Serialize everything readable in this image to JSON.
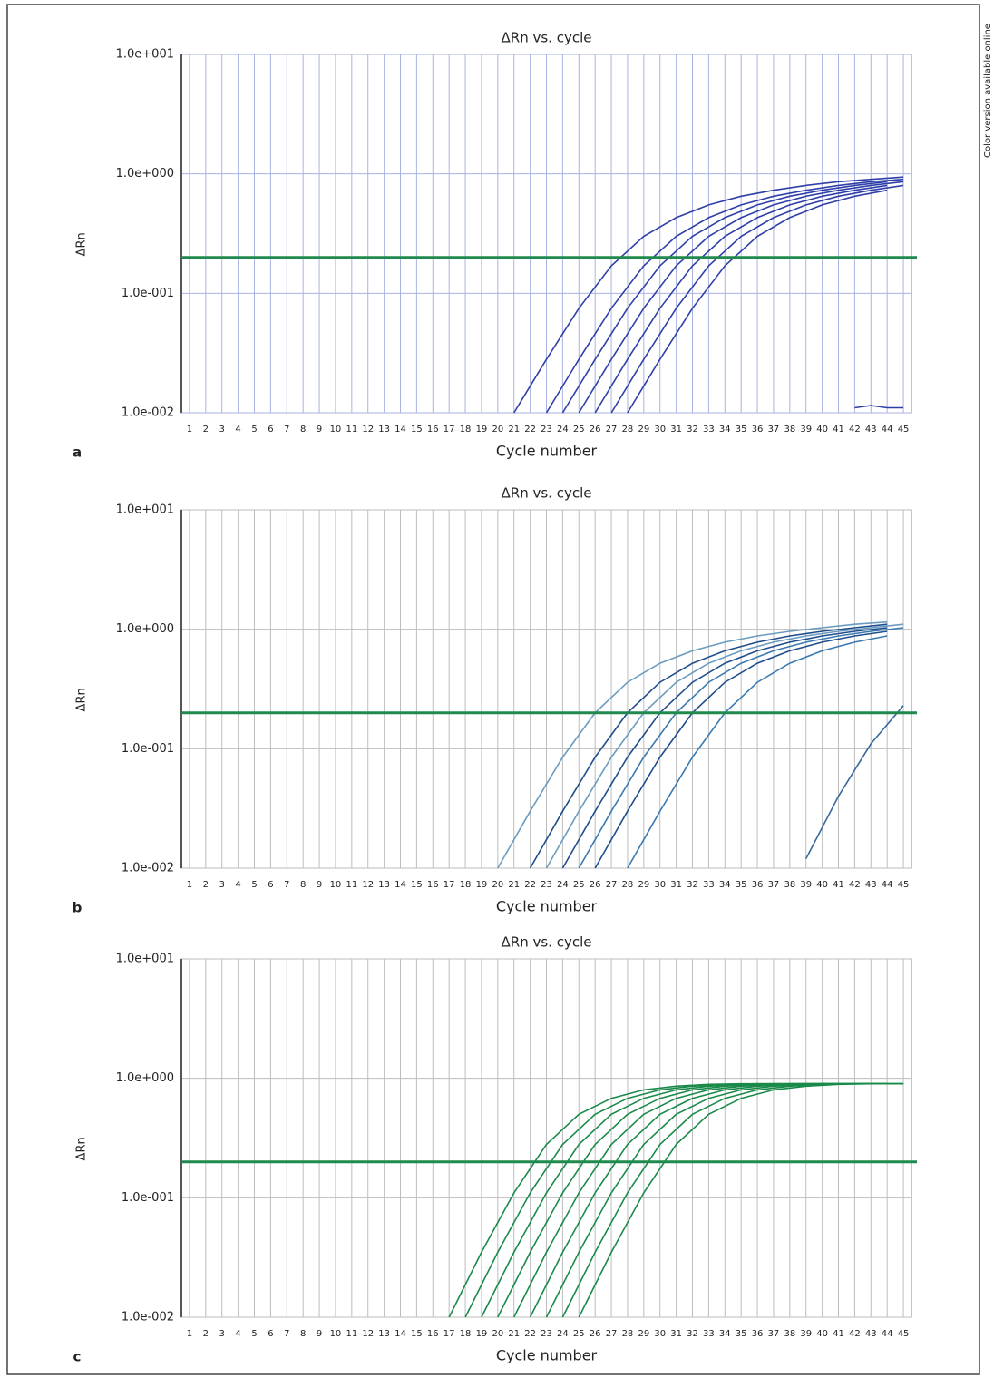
{
  "side_note": "Color version available online",
  "chart_data": [
    {
      "type": "line",
      "panel_label": "a",
      "title": "ΔRn vs. cycle",
      "xlabel": "Cycle number",
      "ylabel": "ΔRn",
      "xlim": [
        0.5,
        45.5
      ],
      "xticks": [
        1,
        2,
        3,
        4,
        5,
        6,
        7,
        8,
        9,
        10,
        11,
        12,
        13,
        14,
        15,
        16,
        17,
        18,
        19,
        20,
        21,
        22,
        23,
        24,
        25,
        26,
        27,
        28,
        29,
        30,
        31,
        32,
        33,
        34,
        35,
        36,
        37,
        38,
        39,
        40,
        41,
        42,
        43,
        44,
        45
      ],
      "ylim": [
        0.01,
        10
      ],
      "log_scale": true,
      "grid": true,
      "grid_color": "#a9b3e2",
      "yticks": [
        {
          "value": 0.01,
          "label": "1.0e-002"
        },
        {
          "value": 0.1,
          "label": "1.0e-001"
        },
        {
          "value": 1,
          "label": "1.0e+000"
        },
        {
          "value": 10,
          "label": "1.0e+001"
        }
      ],
      "threshold": 0.2,
      "threshold_color": "#1f8a4c",
      "series": [
        {
          "color": "#2f3fa8",
          "x": [
            21,
            23,
            25,
            27,
            29,
            31,
            33,
            35,
            37,
            39,
            41,
            43,
            45
          ],
          "values": [
            0.01,
            0.028,
            0.075,
            0.17,
            0.3,
            0.43,
            0.55,
            0.65,
            0.73,
            0.8,
            0.86,
            0.9,
            0.94
          ]
        },
        {
          "color": "#2f3fa8",
          "x": [
            23,
            25,
            27,
            29,
            31,
            33,
            35,
            37,
            39,
            41,
            43,
            45
          ],
          "values": [
            0.01,
            0.028,
            0.075,
            0.17,
            0.3,
            0.43,
            0.55,
            0.65,
            0.73,
            0.8,
            0.86,
            0.9
          ]
        },
        {
          "color": "#2f3fa8",
          "x": [
            24,
            26,
            28,
            30,
            32,
            34,
            36,
            38,
            40,
            42,
            44
          ],
          "values": [
            0.01,
            0.028,
            0.075,
            0.17,
            0.3,
            0.43,
            0.55,
            0.65,
            0.73,
            0.8,
            0.86
          ]
        },
        {
          "color": "#2f3fa8",
          "x": [
            25,
            27,
            29,
            31,
            33,
            35,
            37,
            39,
            41,
            43,
            45
          ],
          "values": [
            0.01,
            0.028,
            0.075,
            0.17,
            0.3,
            0.43,
            0.55,
            0.65,
            0.73,
            0.8,
            0.86
          ]
        },
        {
          "color": "#2f3fa8",
          "x": [
            26,
            28,
            30,
            32,
            34,
            36,
            38,
            40,
            42,
            44
          ],
          "values": [
            0.01,
            0.028,
            0.075,
            0.17,
            0.3,
            0.43,
            0.55,
            0.65,
            0.73,
            0.8
          ]
        },
        {
          "color": "#2f3fa8",
          "x": [
            27,
            29,
            31,
            33,
            35,
            37,
            39,
            41,
            43,
            45
          ],
          "values": [
            0.01,
            0.028,
            0.075,
            0.17,
            0.3,
            0.43,
            0.55,
            0.65,
            0.73,
            0.8
          ]
        },
        {
          "color": "#2f3fa8",
          "x": [
            28,
            30,
            32,
            34,
            36,
            38,
            40,
            42,
            44
          ],
          "values": [
            0.01,
            0.028,
            0.075,
            0.17,
            0.3,
            0.43,
            0.55,
            0.65,
            0.73
          ]
        },
        {
          "color": "#2f3fa8",
          "x": [
            42,
            43,
            44,
            45
          ],
          "values": [
            0.011,
            0.0115,
            0.011,
            0.011
          ]
        }
      ]
    },
    {
      "type": "line",
      "panel_label": "b",
      "title": "ΔRn vs. cycle",
      "xlabel": "Cycle number",
      "ylabel": "ΔRn",
      "xlim": [
        0.5,
        45.5
      ],
      "xticks": [
        1,
        2,
        3,
        4,
        5,
        6,
        7,
        8,
        9,
        10,
        11,
        12,
        13,
        14,
        15,
        16,
        17,
        18,
        19,
        20,
        21,
        22,
        23,
        24,
        25,
        26,
        27,
        28,
        29,
        30,
        31,
        32,
        33,
        34,
        35,
        36,
        37,
        38,
        39,
        40,
        41,
        42,
        43,
        44,
        45
      ],
      "ylim": [
        0.01,
        10
      ],
      "log_scale": true,
      "grid": true,
      "grid_color": "#bdbdbd",
      "yticks": [
        {
          "value": 0.01,
          "label": "1.0e-002"
        },
        {
          "value": 0.1,
          "label": "1.0e-001"
        },
        {
          "value": 1,
          "label": "1.0e+000"
        },
        {
          "value": 10,
          "label": "1.0e+001"
        }
      ],
      "threshold": 0.2,
      "threshold_color": "#1f8a4c",
      "series": [
        {
          "color": "#6a9cc0",
          "x": [
            20,
            22,
            24,
            26,
            28,
            30,
            32,
            34,
            36,
            38,
            40,
            42,
            44
          ],
          "values": [
            0.01,
            0.03,
            0.085,
            0.2,
            0.36,
            0.52,
            0.66,
            0.78,
            0.88,
            0.96,
            1.03,
            1.1,
            1.15
          ]
        },
        {
          "color": "#1f4e8c",
          "x": [
            22,
            24,
            26,
            28,
            30,
            32,
            34,
            36,
            38,
            40,
            42,
            44
          ],
          "values": [
            0.01,
            0.03,
            0.085,
            0.2,
            0.36,
            0.52,
            0.66,
            0.78,
            0.88,
            0.96,
            1.03,
            1.1
          ]
        },
        {
          "color": "#6a9cc0",
          "x": [
            23,
            25,
            27,
            29,
            31,
            33,
            35,
            37,
            39,
            41,
            43,
            45
          ],
          "values": [
            0.01,
            0.03,
            0.085,
            0.2,
            0.36,
            0.52,
            0.66,
            0.78,
            0.88,
            0.96,
            1.03,
            1.1
          ]
        },
        {
          "color": "#1f4e8c",
          "x": [
            24,
            26,
            28,
            30,
            32,
            34,
            36,
            38,
            40,
            42,
            44
          ],
          "values": [
            0.01,
            0.03,
            0.085,
            0.2,
            0.36,
            0.52,
            0.66,
            0.78,
            0.88,
            0.96,
            1.03
          ]
        },
        {
          "color": "#3a7ab0",
          "x": [
            25,
            27,
            29,
            31,
            33,
            35,
            37,
            39,
            41,
            43,
            45
          ],
          "values": [
            0.01,
            0.03,
            0.085,
            0.2,
            0.36,
            0.52,
            0.66,
            0.78,
            0.88,
            0.96,
            1.03
          ]
        },
        {
          "color": "#1f4e8c",
          "x": [
            26,
            28,
            30,
            32,
            34,
            36,
            38,
            40,
            42,
            44
          ],
          "values": [
            0.01,
            0.03,
            0.085,
            0.2,
            0.36,
            0.52,
            0.66,
            0.78,
            0.88,
            0.96
          ]
        },
        {
          "color": "#3a7ab0",
          "x": [
            28,
            30,
            32,
            34,
            36,
            38,
            40,
            42,
            44
          ],
          "values": [
            0.01,
            0.03,
            0.085,
            0.2,
            0.36,
            0.52,
            0.66,
            0.78,
            0.88
          ]
        },
        {
          "color": "#3a6a9e",
          "x": [
            39,
            41,
            43,
            45
          ],
          "values": [
            0.012,
            0.04,
            0.11,
            0.23
          ]
        }
      ]
    },
    {
      "type": "line",
      "panel_label": "c",
      "title": "ΔRn vs. cycle",
      "xlabel": "Cycle number",
      "ylabel": "ΔRn",
      "xlim": [
        0.5,
        45.5
      ],
      "xticks": [
        1,
        2,
        3,
        4,
        5,
        6,
        7,
        8,
        9,
        10,
        11,
        12,
        13,
        14,
        15,
        16,
        17,
        18,
        19,
        20,
        21,
        22,
        23,
        24,
        25,
        26,
        27,
        28,
        29,
        30,
        31,
        32,
        33,
        34,
        35,
        36,
        37,
        38,
        39,
        40,
        41,
        42,
        43,
        44,
        45
      ],
      "ylim": [
        0.01,
        10
      ],
      "log_scale": true,
      "grid": true,
      "grid_color": "#bdbdbd",
      "yticks": [
        {
          "value": 0.01,
          "label": "1.0e-002"
        },
        {
          "value": 0.1,
          "label": "1.0e-001"
        },
        {
          "value": 1,
          "label": "1.0e+000"
        },
        {
          "value": 10,
          "label": "1.0e+001"
        }
      ],
      "threshold": 0.2,
      "threshold_color": "#1f8a4c",
      "series": [
        {
          "color": "#1a8a4a",
          "x": [
            17,
            19,
            21,
            23,
            25,
            27,
            29,
            31,
            33,
            35,
            37,
            39,
            41,
            43,
            45
          ],
          "values": [
            0.01,
            0.035,
            0.11,
            0.28,
            0.5,
            0.68,
            0.8,
            0.86,
            0.89,
            0.9,
            0.9,
            0.9,
            0.9,
            0.9,
            0.9
          ]
        },
        {
          "color": "#1a8a4a",
          "x": [
            18,
            20,
            22,
            24,
            26,
            28,
            30,
            32,
            34,
            36,
            38,
            40,
            42,
            44
          ],
          "values": [
            0.01,
            0.035,
            0.11,
            0.28,
            0.5,
            0.68,
            0.8,
            0.86,
            0.89,
            0.9,
            0.9,
            0.9,
            0.9,
            0.9
          ]
        },
        {
          "color": "#1a8a4a",
          "x": [
            19,
            21,
            23,
            25,
            27,
            29,
            31,
            33,
            35,
            37,
            39,
            41,
            43,
            45
          ],
          "values": [
            0.01,
            0.035,
            0.11,
            0.28,
            0.5,
            0.68,
            0.8,
            0.86,
            0.89,
            0.9,
            0.9,
            0.9,
            0.9,
            0.9
          ]
        },
        {
          "color": "#1a8a4a",
          "x": [
            20,
            22,
            24,
            26,
            28,
            30,
            32,
            34,
            36,
            38,
            40,
            42,
            44
          ],
          "values": [
            0.01,
            0.035,
            0.11,
            0.28,
            0.5,
            0.68,
            0.8,
            0.86,
            0.89,
            0.9,
            0.9,
            0.9,
            0.9
          ]
        },
        {
          "color": "#1a8a4a",
          "x": [
            21,
            23,
            25,
            27,
            29,
            31,
            33,
            35,
            37,
            39,
            41,
            43,
            45
          ],
          "values": [
            0.01,
            0.035,
            0.11,
            0.28,
            0.5,
            0.68,
            0.8,
            0.86,
            0.89,
            0.9,
            0.9,
            0.9,
            0.9
          ]
        },
        {
          "color": "#1a8a4a",
          "x": [
            22,
            24,
            26,
            28,
            30,
            32,
            34,
            36,
            38,
            40,
            42,
            44
          ],
          "values": [
            0.01,
            0.035,
            0.11,
            0.28,
            0.5,
            0.68,
            0.8,
            0.86,
            0.89,
            0.9,
            0.9,
            0.9
          ]
        },
        {
          "color": "#1a8a4a",
          "x": [
            23,
            25,
            27,
            29,
            31,
            33,
            35,
            37,
            39,
            41,
            43,
            45
          ],
          "values": [
            0.01,
            0.035,
            0.11,
            0.28,
            0.5,
            0.68,
            0.8,
            0.86,
            0.89,
            0.9,
            0.9,
            0.9
          ]
        },
        {
          "color": "#1a8a4a",
          "x": [
            24,
            26,
            28,
            30,
            32,
            34,
            36,
            38,
            40,
            42,
            44
          ],
          "values": [
            0.01,
            0.035,
            0.11,
            0.28,
            0.5,
            0.68,
            0.8,
            0.86,
            0.89,
            0.9,
            0.9
          ]
        },
        {
          "color": "#1a8a4a",
          "x": [
            25,
            27,
            29,
            31,
            33,
            35,
            37,
            39,
            41,
            43,
            45
          ],
          "values": [
            0.01,
            0.035,
            0.11,
            0.28,
            0.5,
            0.68,
            0.8,
            0.86,
            0.89,
            0.9,
            0.9
          ]
        }
      ]
    }
  ]
}
